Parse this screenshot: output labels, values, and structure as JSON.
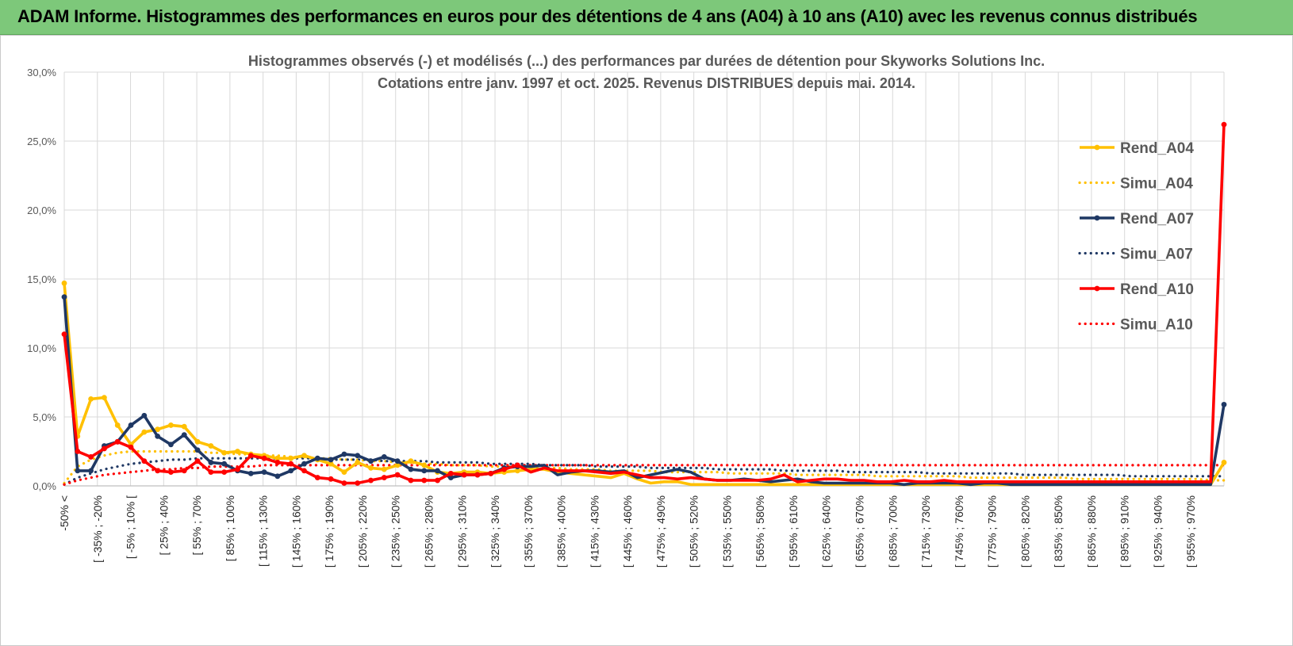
{
  "banner": {
    "title": "ADAM Informe. Histogrammes des performances en euros pour des détentions de 4 ans (A04) à 10 ans (A10) avec les revenus connus distribués"
  },
  "colors": {
    "banner": "#7dc87a",
    "a04": "#ffc000",
    "a07": "#1f3864",
    "a10": "#ff0000",
    "grid": "#d9d9d9",
    "axis": "#bfbfbf",
    "text": "#595959"
  },
  "chart_data": {
    "type": "line",
    "title": "Histogrammes observés (-) et modélisés (...) des performances par durées de détention pour Skyworks Solutions Inc.",
    "subtitle": "Cotations entre janv. 1997 et oct. 2025.  Revenus DISTRIBUES depuis mai. 2014.",
    "xlabel": "",
    "ylabel": "",
    "ylim": [
      0,
      30
    ],
    "yticks": [
      "0,0%",
      "5,0%",
      "10,0%",
      "15,0%",
      "20,0%",
      "25,0%",
      "30,0%"
    ],
    "grid": true,
    "legend_position": "right",
    "xtick_labels": [
      "-50% <",
      "[ -35% ; -20%",
      "[ -5% ; 10% [",
      "[ 25% ; 40%",
      "[ 55% ; 70%",
      "[ 85% ; 100%",
      "[ 115% ; 130%",
      "[ 145% ; 160%",
      "[ 175% ; 190%",
      "[ 205% ; 220%",
      "[ 235% ; 250%",
      "[ 265% ; 280%",
      "[ 295% ; 310%",
      "[ 325% ; 340%",
      "[ 355% ; 370%",
      "[ 385% ; 400%",
      "[ 415% ; 430%",
      "[ 445% ; 460%",
      "[ 475% ; 490%",
      "[ 505% ; 520%",
      "[ 535% ; 550%",
      "[ 565% ; 580%",
      "[ 595% ; 610%",
      "[ 625% ; 640%",
      "[ 655% ; 670%",
      "[ 685% ; 700%",
      "[ 715% ; 730%",
      "[ 745% ; 760%",
      "[ 775% ; 790%",
      "[ 805% ; 820%",
      "[ 835% ; 850%",
      "[ 865% ; 880%",
      "[ 895% ; 910%",
      "[ 925% ; 940%",
      "[ 955% ; 970%"
    ],
    "series": [
      {
        "name": "Rend_A04",
        "style": "solid",
        "color": "#ffc000",
        "values": [
          14.7,
          3.6,
          6.3,
          6.4,
          4.4,
          3.0,
          3.9,
          4.1,
          4.4,
          4.3,
          3.2,
          2.9,
          2.4,
          2.5,
          2.3,
          2.2,
          2.0,
          2.0,
          2.2,
          1.9,
          1.6,
          1.0,
          1.7,
          1.3,
          1.2,
          1.5,
          1.8,
          1.5,
          1.0,
          0.9,
          1.0,
          1.0,
          0.9,
          1.0,
          1.1,
          1.2,
          1.2,
          1.0,
          0.9,
          0.8,
          0.7,
          0.6,
          0.9,
          0.5,
          0.2,
          0.3,
          0.3,
          0.1,
          0.1,
          0.1,
          0.1,
          0.1,
          0.1,
          0.1,
          0.1,
          0.1,
          0.1,
          0.1,
          0.1,
          0.1,
          0.1,
          0.1,
          0.1,
          0.1,
          0.1,
          0.1,
          0.1,
          0.1,
          0.1,
          0.1,
          0.1,
          0.1,
          0.1,
          0.1,
          0.1,
          0.1,
          0.1,
          0.1,
          0.1,
          0.1,
          0.1,
          0.1,
          0.1,
          0.1,
          0.1,
          0.1,
          0.1,
          1.7
        ]
      },
      {
        "name": "Simu_A04",
        "style": "dotted",
        "color": "#ffc000",
        "values": [
          0.2,
          1.4,
          1.9,
          2.2,
          2.4,
          2.5,
          2.5,
          2.5,
          2.5,
          2.5,
          2.5,
          2.4,
          2.4,
          2.3,
          2.3,
          2.2,
          2.2,
          2.1,
          2.1,
          2.0,
          2.0,
          1.9,
          1.9,
          1.8,
          1.8,
          1.7,
          1.7,
          1.6,
          1.6,
          1.5,
          1.5,
          1.5,
          1.4,
          1.4,
          1.4,
          1.3,
          1.3,
          1.3,
          1.2,
          1.2,
          1.2,
          1.1,
          1.1,
          1.1,
          1.1,
          1.0,
          1.0,
          1.0,
          1.0,
          1.0,
          0.9,
          0.9,
          0.9,
          0.9,
          0.9,
          0.8,
          0.8,
          0.8,
          0.8,
          0.8,
          0.8,
          0.7,
          0.7,
          0.7,
          0.7,
          0.7,
          0.7,
          0.7,
          0.6,
          0.6,
          0.6,
          0.6,
          0.6,
          0.6,
          0.6,
          0.6,
          0.5,
          0.5,
          0.5,
          0.5,
          0.5,
          0.5,
          0.5,
          0.5,
          0.5,
          0.5,
          0.4,
          0.4
        ]
      },
      {
        "name": "Rend_A07",
        "style": "solid",
        "color": "#1f3864",
        "values": [
          13.7,
          1.1,
          1.1,
          2.9,
          3.2,
          4.4,
          5.1,
          3.6,
          3.0,
          3.7,
          2.6,
          1.7,
          1.6,
          1.1,
          0.9,
          1.0,
          0.7,
          1.1,
          1.6,
          2.0,
          1.9,
          2.3,
          2.2,
          1.8,
          2.1,
          1.8,
          1.2,
          1.1,
          1.1,
          0.6,
          0.8,
          0.8,
          0.9,
          1.3,
          1.4,
          1.4,
          1.5,
          0.8,
          1.0,
          1.1,
          1.1,
          1.0,
          1.1,
          0.6,
          0.8,
          1.0,
          1.2,
          1.0,
          0.5,
          0.4,
          0.4,
          0.5,
          0.4,
          0.3,
          0.4,
          0.5,
          0.3,
          0.2,
          0.2,
          0.2,
          0.2,
          0.2,
          0.2,
          0.1,
          0.2,
          0.2,
          0.2,
          0.2,
          0.1,
          0.2,
          0.2,
          0.1,
          0.1,
          0.1,
          0.1,
          0.1,
          0.1,
          0.1,
          0.1,
          0.1,
          0.1,
          0.1,
          0.1,
          0.1,
          0.1,
          0.1,
          0.1,
          5.9
        ]
      },
      {
        "name": "Simu_A07",
        "style": "dotted",
        "color": "#1f3864",
        "values": [
          0.1,
          0.6,
          0.9,
          1.2,
          1.4,
          1.6,
          1.7,
          1.8,
          1.9,
          1.9,
          2.0,
          2.0,
          2.0,
          2.0,
          2.0,
          2.0,
          2.0,
          2.0,
          2.0,
          2.0,
          1.9,
          1.9,
          1.9,
          1.9,
          1.8,
          1.8,
          1.8,
          1.8,
          1.7,
          1.7,
          1.7,
          1.7,
          1.6,
          1.6,
          1.6,
          1.6,
          1.5,
          1.5,
          1.5,
          1.5,
          1.4,
          1.4,
          1.4,
          1.4,
          1.3,
          1.3,
          1.3,
          1.3,
          1.3,
          1.2,
          1.2,
          1.2,
          1.2,
          1.2,
          1.1,
          1.1,
          1.1,
          1.1,
          1.1,
          1.0,
          1.0,
          1.0,
          1.0,
          1.0,
          1.0,
          0.9,
          0.9,
          0.9,
          0.9,
          0.9,
          0.9,
          0.9,
          0.8,
          0.8,
          0.8,
          0.8,
          0.8,
          0.8,
          0.8,
          0.8,
          0.7,
          0.7,
          0.7,
          0.7,
          0.7,
          0.7,
          0.7,
          0.7
        ]
      },
      {
        "name": "Rend_A10",
        "style": "solid",
        "color": "#ff0000",
        "values": [
          11.0,
          2.5,
          2.1,
          2.7,
          3.2,
          2.8,
          1.8,
          1.1,
          1.0,
          1.1,
          1.8,
          1.0,
          1.0,
          1.2,
          2.2,
          2.0,
          1.7,
          1.6,
          1.1,
          0.6,
          0.5,
          0.2,
          0.2,
          0.4,
          0.6,
          0.8,
          0.4,
          0.4,
          0.4,
          0.9,
          0.8,
          0.8,
          0.9,
          1.2,
          1.5,
          1.0,
          1.3,
          1.1,
          1.1,
          1.1,
          1.0,
          0.9,
          1.0,
          0.8,
          0.6,
          0.6,
          0.5,
          0.6,
          0.5,
          0.4,
          0.4,
          0.4,
          0.4,
          0.5,
          0.8,
          0.3,
          0.4,
          0.5,
          0.5,
          0.4,
          0.4,
          0.3,
          0.3,
          0.4,
          0.3,
          0.3,
          0.4,
          0.3,
          0.3,
          0.3,
          0.3,
          0.3,
          0.3,
          0.3,
          0.3,
          0.3,
          0.3,
          0.3,
          0.3,
          0.3,
          0.3,
          0.3,
          0.3,
          0.3,
          0.3,
          0.3,
          0.3,
          26.2
        ]
      },
      {
        "name": "Simu_A10",
        "style": "dotted",
        "color": "#ff0000",
        "values": [
          0.1,
          0.4,
          0.6,
          0.8,
          0.9,
          1.0,
          1.1,
          1.2,
          1.2,
          1.3,
          1.3,
          1.4,
          1.4,
          1.4,
          1.4,
          1.5,
          1.5,
          1.5,
          1.5,
          1.5,
          1.5,
          1.5,
          1.5,
          1.5,
          1.5,
          1.5,
          1.5,
          1.5,
          1.5,
          1.5,
          1.5,
          1.5,
          1.5,
          1.5,
          1.5,
          1.5,
          1.5,
          1.5,
          1.5,
          1.5,
          1.5,
          1.5,
          1.5,
          1.5,
          1.5,
          1.5,
          1.5,
          1.5,
          1.5,
          1.5,
          1.5,
          1.5,
          1.5,
          1.5,
          1.5,
          1.5,
          1.5,
          1.5,
          1.5,
          1.5,
          1.5,
          1.5,
          1.5,
          1.5,
          1.5,
          1.5,
          1.5,
          1.5,
          1.5,
          1.5,
          1.5,
          1.5,
          1.5,
          1.5,
          1.5,
          1.5,
          1.5,
          1.5,
          1.5,
          1.5,
          1.5,
          1.5,
          1.5,
          1.5,
          1.5,
          1.5,
          1.5,
          1.5
        ]
      }
    ]
  }
}
